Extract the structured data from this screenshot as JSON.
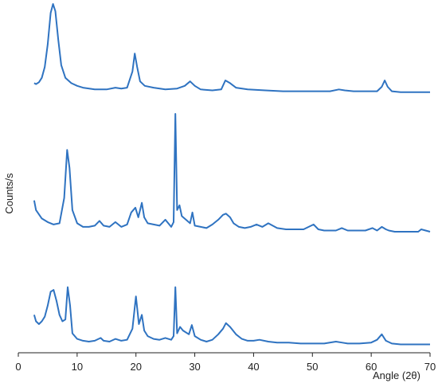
{
  "chart_data": {
    "type": "line",
    "title": "",
    "xlabel": "Angle (2θ)",
    "ylabel": "Counts/s",
    "xlim": [
      0,
      70
    ],
    "xticks": [
      0,
      10,
      20,
      30,
      40,
      50,
      60,
      70
    ],
    "y_tick_labels": false,
    "grid": false,
    "legend": "none",
    "line_color": "#2f73c1",
    "layout": "stacked-offset",
    "series": [
      {
        "x": [
          2.7,
          3,
          3.5,
          4,
          4.5,
          5,
          5.5,
          5.9,
          6.3,
          6.8,
          7.3,
          8,
          9,
          10,
          11,
          13,
          15,
          16.5,
          17.5,
          18.5,
          19.4,
          19.8,
          20.2,
          20.7,
          21.5,
          23,
          25,
          27,
          28.3,
          29.2,
          30,
          31,
          33,
          34.5,
          35.2,
          36,
          37,
          39,
          42,
          45,
          48,
          50,
          53,
          54.5,
          55.5,
          57,
          59,
          61,
          61.8,
          62.3,
          62.8,
          63.5,
          65,
          67,
          70
        ],
        "y": [
          12,
          11,
          13,
          18,
          30,
          55,
          90,
          100,
          92,
          60,
          32,
          18,
          12,
          9,
          7,
          5,
          5,
          7,
          6,
          7,
          25,
          45,
          30,
          14,
          9,
          7,
          5,
          6,
          9,
          14,
          9,
          5,
          4,
          5,
          15,
          12,
          7,
          5,
          4,
          3,
          3,
          3,
          3,
          5,
          4,
          3,
          3,
          3,
          8,
          15,
          8,
          3,
          2,
          2,
          2
        ]
      },
      {
        "x": [
          2.7,
          3,
          4,
          5,
          6,
          7,
          7.8,
          8.3,
          8.7,
          9.2,
          10,
          11,
          12,
          13,
          13.8,
          14.5,
          15.5,
          16.5,
          17.5,
          18.5,
          19.2,
          19.9,
          20.4,
          21,
          21.4,
          22,
          23,
          24,
          25,
          26,
          26.4,
          26.7,
          27,
          27.4,
          27.8,
          28.5,
          29.2,
          29.6,
          30,
          31,
          32,
          33,
          34,
          34.8,
          35.3,
          36,
          36.6,
          37.5,
          38.5,
          39.5,
          40.5,
          41.5,
          42.5,
          44,
          45.5,
          47,
          48.5,
          50.2,
          51,
          52,
          53,
          54,
          55,
          56,
          57,
          58,
          59,
          60.2,
          61,
          61.8,
          62.5,
          63,
          64,
          66,
          68,
          68.5,
          70
        ],
        "y": [
          28,
          20,
          13,
          10,
          8,
          9,
          30,
          70,
          55,
          20,
          9,
          6,
          6,
          7,
          11,
          7,
          6,
          10,
          6,
          8,
          18,
          22,
          14,
          26,
          14,
          9,
          8,
          7,
          12,
          6,
          10,
          100,
          20,
          24,
          15,
          12,
          9,
          18,
          7,
          6,
          5,
          8,
          12,
          16,
          17,
          14,
          9,
          6,
          5,
          6,
          8,
          6,
          9,
          5,
          4,
          4,
          4,
          8,
          4,
          3,
          3,
          3,
          5,
          3,
          3,
          3,
          3,
          5,
          3,
          6,
          4,
          3,
          2,
          2,
          2,
          4,
          2
        ]
      },
      {
        "x": [
          2.7,
          3,
          3.5,
          4,
          4.5,
          5,
          5.5,
          6,
          6.5,
          7,
          7.5,
          8,
          8.4,
          8.8,
          9.2,
          10,
          11,
          12,
          13,
          14,
          14.5,
          15.5,
          16.5,
          17.5,
          18.5,
          19.4,
          20,
          20.5,
          21,
          21.4,
          22,
          23,
          24,
          25,
          26,
          26.4,
          26.7,
          27,
          27.5,
          28,
          29,
          29.5,
          30,
          31,
          32,
          33,
          34,
          34.8,
          35.3,
          36,
          37,
          38,
          39,
          40,
          41,
          42.5,
          44,
          46,
          48,
          50,
          52,
          54,
          55,
          56,
          58,
          60,
          61,
          61.8,
          62.5,
          63.5,
          65,
          68,
          70
        ],
        "y": [
          35,
          28,
          25,
          28,
          33,
          45,
          60,
          62,
          50,
          35,
          28,
          30,
          65,
          45,
          15,
          9,
          7,
          6,
          7,
          10,
          7,
          6,
          9,
          7,
          8,
          20,
          55,
          25,
          35,
          18,
          12,
          9,
          8,
          10,
          8,
          12,
          65,
          15,
          22,
          18,
          14,
          24,
          12,
          8,
          6,
          8,
          14,
          20,
          26,
          22,
          14,
          9,
          7,
          7,
          8,
          6,
          5,
          5,
          4,
          4,
          4,
          6,
          5,
          4,
          4,
          5,
          8,
          14,
          7,
          4,
          3,
          3,
          3
        ]
      }
    ]
  }
}
